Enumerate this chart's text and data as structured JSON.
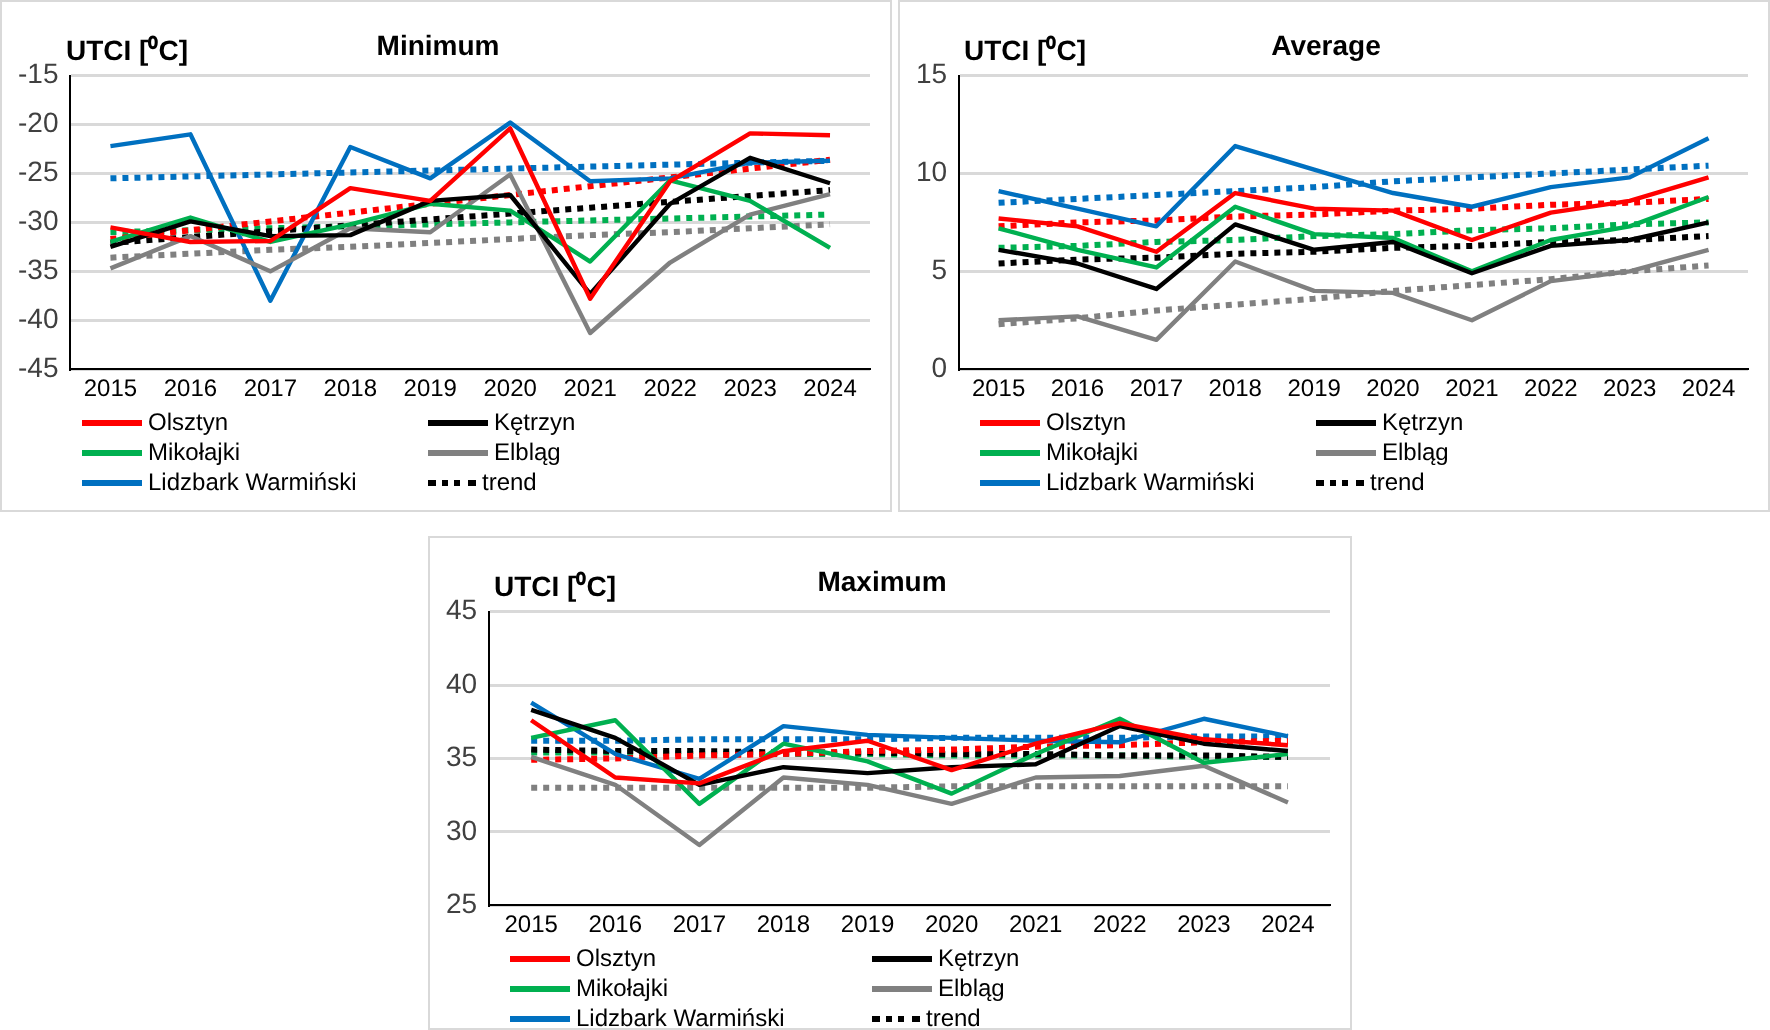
{
  "chart_data": [
    {
      "type": "line",
      "title": "Minimum",
      "ylabel": "UTCI [⁰C]",
      "categories": [
        "2015",
        "2016",
        "2017",
        "2018",
        "2019",
        "2020",
        "2021",
        "2022",
        "2023",
        "2024"
      ],
      "ylim": [
        -45,
        -15
      ],
      "yticks": [
        -45,
        -40,
        -35,
        -30,
        -25,
        -20,
        -15
      ],
      "grid": "y",
      "legend": "bottom",
      "marker": "none",
      "series": [
        {
          "name": "Olsztyn",
          "color": "#ff0000",
          "values": [
            -30.5,
            -32,
            -31.9,
            -26.5,
            -27.8,
            -20.4,
            -37.8,
            -25.8,
            -20.9,
            -21.1
          ]
        },
        {
          "name": "Kętrzyn",
          "color": "#000000",
          "values": [
            -32.5,
            -29.9,
            -31.4,
            -31.3,
            -27.8,
            -27.2,
            -37.3,
            -28.1,
            -23.4,
            -26
          ]
        },
        {
          "name": "Mikołajki",
          "color": "#00b050",
          "values": [
            -32,
            -29.5,
            -32,
            -30.2,
            -28.1,
            -28.8,
            -34,
            -25.7,
            -27.8,
            -32.6
          ]
        },
        {
          "name": "Elbląg",
          "color": "#808080",
          "values": [
            -34.7,
            -31.4,
            -35,
            -30.6,
            -31,
            -25.1,
            -41.3,
            -34.1,
            -29.2,
            -27.1
          ]
        },
        {
          "name": "Lidzbark Warmiński",
          "color": "#0070c0",
          "values": [
            -22.2,
            -21,
            -38,
            -22.3,
            -25.5,
            -19.8,
            -25.8,
            -25.5,
            -23.9,
            -23.7
          ]
        },
        {
          "color": "#ff0000",
          "line_style": "dotted",
          "values": [
            -31.7,
            -30.8,
            -29.9,
            -29,
            -28.1,
            -27.2,
            -26.3,
            -25.4,
            -24.5,
            -23.6
          ]
        },
        {
          "name": "trend",
          "color": "#000000",
          "line_style": "dotted",
          "values": [
            -32.1,
            -31.5,
            -30.9,
            -30.3,
            -29.7,
            -29.1,
            -28.5,
            -27.9,
            -27.3,
            -26.7
          ]
        },
        {
          "color": "#00b050",
          "line_style": "dotted",
          "values": [
            -31,
            -30.8,
            -30.6,
            -30.4,
            -30.2,
            -30,
            -29.8,
            -29.6,
            -29.4,
            -29.2
          ]
        },
        {
          "color": "#808080",
          "line_style": "dotted",
          "values": [
            -33.6,
            -33.2,
            -32.8,
            -32.5,
            -32.1,
            -31.7,
            -31.3,
            -31,
            -30.6,
            -30.2
          ]
        },
        {
          "color": "#0070c0",
          "line_style": "dotted",
          "values": [
            -25.5,
            -25.3,
            -25.1,
            -24.9,
            -24.7,
            -24.5,
            -24.3,
            -24.1,
            -23.9,
            -23.7
          ]
        }
      ]
    },
    {
      "type": "line",
      "title": "Average",
      "ylabel": "UTCI [⁰C]",
      "categories": [
        "2015",
        "2016",
        "2017",
        "2018",
        "2019",
        "2020",
        "2021",
        "2022",
        "2023",
        "2024"
      ],
      "ylim": [
        0,
        15
      ],
      "yticks": [
        0,
        5,
        10,
        15
      ],
      "grid": "y",
      "legend": "bottom",
      "marker": "none",
      "series": [
        {
          "name": "Olsztyn",
          "color": "#ff0000",
          "values": [
            7.7,
            7.3,
            6,
            9,
            8.2,
            8.1,
            6.6,
            8,
            8.6,
            9.8
          ]
        },
        {
          "name": "Kętrzyn",
          "color": "#000000",
          "values": [
            6.1,
            5.4,
            4.1,
            7.4,
            6.1,
            6.5,
            4.9,
            6.3,
            6.6,
            7.5
          ]
        },
        {
          "name": "Mikołajki",
          "color": "#00b050",
          "values": [
            7.2,
            6.1,
            5.2,
            8.3,
            6.9,
            6.7,
            5,
            6.6,
            7.3,
            8.8
          ]
        },
        {
          "name": "Elbląg",
          "color": "#808080",
          "values": [
            2.5,
            2.7,
            1.5,
            5.5,
            4,
            3.9,
            2.5,
            4.5,
            5,
            6.1
          ]
        },
        {
          "name": "Lidzbark Warmiński",
          "color": "#0070c0",
          "values": [
            9.1,
            8.2,
            7.3,
            11.4,
            10.2,
            9,
            8.3,
            9.3,
            9.8,
            11.8
          ]
        },
        {
          "color": "#ff0000",
          "line_style": "dotted",
          "values": [
            7.3,
            7.5,
            7.6,
            7.8,
            7.9,
            8.1,
            8.2,
            8.4,
            8.5,
            8.7
          ]
        },
        {
          "name": "trend",
          "color": "#000000",
          "line_style": "dotted",
          "values": [
            5.4,
            5.6,
            5.7,
            5.9,
            6,
            6.2,
            6.3,
            6.5,
            6.6,
            6.8
          ]
        },
        {
          "color": "#00b050",
          "line_style": "dotted",
          "values": [
            6.2,
            6.3,
            6.5,
            6.6,
            6.8,
            6.9,
            7.1,
            7.2,
            7.4,
            7.5
          ]
        },
        {
          "color": "#808080",
          "line_style": "dotted",
          "values": [
            2.3,
            2.6,
            3,
            3.3,
            3.6,
            4,
            4.3,
            4.6,
            5,
            5.3
          ]
        },
        {
          "color": "#0070c0",
          "line_style": "dotted",
          "values": [
            8.5,
            8.7,
            8.9,
            9.1,
            9.3,
            9.6,
            9.8,
            10,
            10.2,
            10.4
          ]
        }
      ]
    },
    {
      "type": "line",
      "title": "Maximum",
      "ylabel": "UTCI [⁰C]",
      "categories": [
        "2015",
        "2016",
        "2017",
        "2018",
        "2019",
        "2020",
        "2021",
        "2022",
        "2023",
        "2024"
      ],
      "ylim": [
        25,
        45
      ],
      "yticks": [
        25,
        30,
        35,
        40,
        45
      ],
      "grid": "y",
      "legend": "bottom",
      "marker": "none",
      "series": [
        {
          "name": "Olsztyn",
          "color": "#ff0000",
          "values": [
            37.6,
            33.7,
            33.3,
            35.5,
            36.2,
            34.2,
            36,
            37.4,
            36.3,
            35.9
          ]
        },
        {
          "name": "Kętrzyn",
          "color": "#000000",
          "values": [
            38.3,
            36.4,
            33.2,
            34.4,
            34,
            34.4,
            34.6,
            37.2,
            36,
            35.5
          ]
        },
        {
          "name": "Mikołajki",
          "color": "#00b050",
          "values": [
            36.4,
            37.6,
            31.9,
            36,
            34.8,
            32.6,
            35.3,
            37.7,
            34.7,
            35.3
          ]
        },
        {
          "name": "Elbląg",
          "color": "#808080",
          "values": [
            35.1,
            33.2,
            29.1,
            33.7,
            33.2,
            31.9,
            33.7,
            33.8,
            34.5,
            32
          ]
        },
        {
          "name": "Lidzbark Warmiński",
          "color": "#0070c0",
          "values": [
            38.8,
            35.3,
            33.6,
            37.2,
            36.6,
            36.4,
            36.2,
            36.1,
            37.7,
            36.5
          ]
        },
        {
          "color": "#ff0000",
          "line_style": "dotted",
          "values": [
            34.9,
            35,
            35.2,
            35.3,
            35.5,
            35.6,
            35.8,
            35.9,
            36.1,
            36.2
          ]
        },
        {
          "name": "trend",
          "color": "#000000",
          "line_style": "dotted",
          "values": [
            35.6,
            35.5,
            35.5,
            35.4,
            35.4,
            35.3,
            35.3,
            35.2,
            35.2,
            35.1
          ]
        },
        {
          "color": "#00b050",
          "line_style": "dotted",
          "values": [
            35.4,
            35.4,
            35.3,
            35.3,
            35.3,
            35.2,
            35.2,
            35.2,
            35.1,
            35.1
          ]
        },
        {
          "color": "#808080",
          "line_style": "dotted",
          "values": [
            33,
            33,
            33,
            33,
            33,
            33.1,
            33.1,
            33.1,
            33.1,
            33.1
          ]
        },
        {
          "color": "#0070c0",
          "line_style": "dotted",
          "values": [
            36.2,
            36.2,
            36.3,
            36.3,
            36.3,
            36.4,
            36.4,
            36.4,
            36.5,
            36.5
          ]
        }
      ]
    }
  ]
}
